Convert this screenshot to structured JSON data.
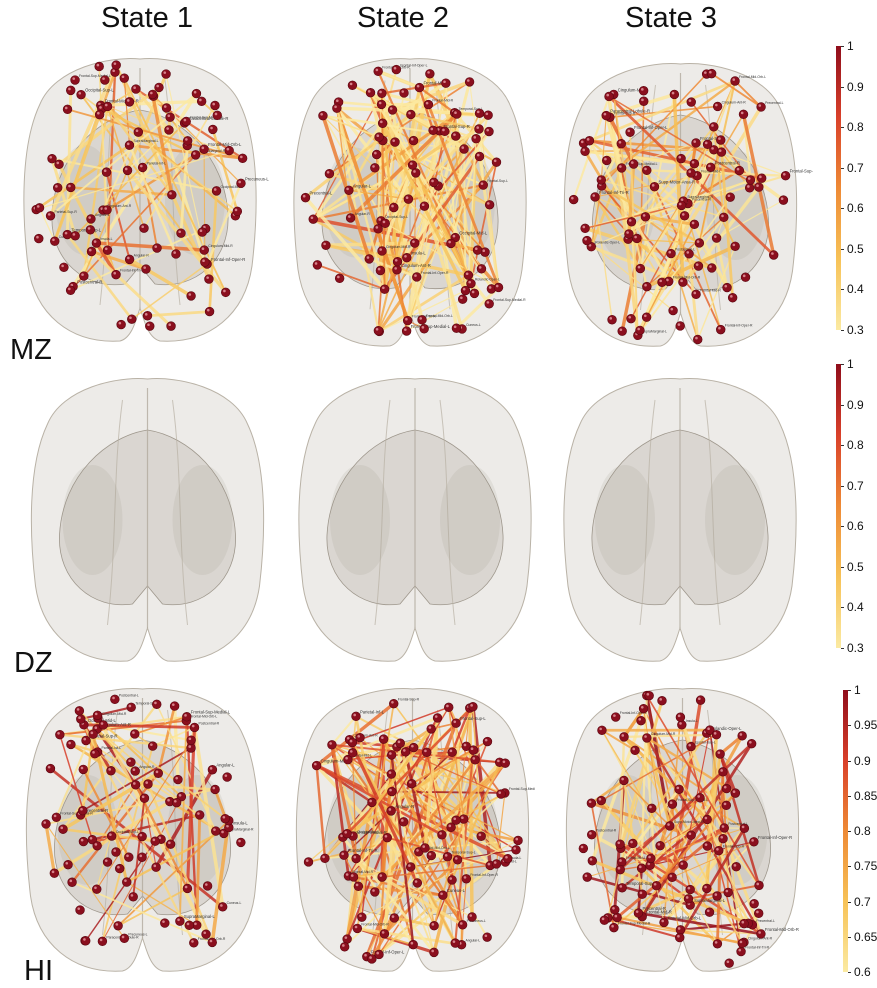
{
  "columns": [
    "State 1",
    "State 2",
    "State 3"
  ],
  "rows": [
    {
      "label": "MZ",
      "scale": {
        "ticks": [
          "1",
          "0.9",
          "0.8",
          "0.7",
          "0.6",
          "0.5",
          "0.4",
          "0.3"
        ],
        "min": 0.3,
        "max": 1
      },
      "states": [
        {
          "nodes": 88,
          "edges": 70,
          "density": "sparse"
        },
        {
          "nodes": 88,
          "edges": 170,
          "density": "dense"
        },
        {
          "nodes": 88,
          "edges": 120,
          "density": "medium"
        }
      ]
    },
    {
      "label": "DZ",
      "scale": {
        "ticks": [
          "1",
          "0.9",
          "0.8",
          "0.7",
          "0.6",
          "0.5",
          "0.4",
          "0.3"
        ],
        "min": 0.3,
        "max": 1
      },
      "states": [
        {
          "nodes": 0,
          "edges": 0,
          "density": "empty"
        },
        {
          "nodes": 0,
          "edges": 0,
          "density": "empty"
        },
        {
          "nodes": 0,
          "edges": 0,
          "density": "empty"
        }
      ]
    },
    {
      "label": "HI",
      "scale": {
        "ticks": [
          "1",
          "0.95",
          "0.9",
          "0.85",
          "0.8",
          "0.75",
          "0.7",
          "0.65",
          "0.6"
        ],
        "min": 0.6,
        "max": 1
      },
      "states": [
        {
          "nodes": 88,
          "edges": 75,
          "density": "sparse"
        },
        {
          "nodes": 88,
          "edges": 175,
          "density": "dense"
        },
        {
          "nodes": 88,
          "edges": 110,
          "density": "medium"
        }
      ]
    }
  ],
  "colormap": [
    "#fbeaa2",
    "#f7c257",
    "#ee8a35",
    "#d9402a",
    "#8f0d1b"
  ],
  "node_color": "#8b0f1e",
  "brain_color": "#d8d3cb",
  "region_labels": [
    "Frontal-Mid-Orb-L",
    "Frontal-Sup-Medial-L",
    "Frontal-Sup-Medial-R",
    "Frontal-Mid-Orb-R",
    "Cingulum-Ant-R",
    "Frontal-Inf-Tri-R",
    "Frontal-Inf-Oper-R",
    "Frontal-Mid-L",
    "Frontal-Sup-L",
    "Frontal-Mid-R",
    "Frontal-Sup-R",
    "Frontal-Inf-Oper-L",
    "Rolandic-Oper-L",
    "Precentral-L",
    "Supp-Motor-Area-R",
    "Precentral-R",
    "Postcentral-L",
    "Postcentral-R",
    "SupraMarginal-L",
    "SupraMarginal-R",
    "Paracentral-Lobule-R",
    "Parietal-Sup-R",
    "Parietal-Inf-L",
    "Precuneus-L",
    "Angular-L",
    "Angular-R",
    "Occipital-Sup-L",
    "Occipital-Mid-L",
    "Cuneus-L",
    "Temporal-Sup-L",
    "Insula-L",
    "Cingulum-Mid-R"
  ]
}
